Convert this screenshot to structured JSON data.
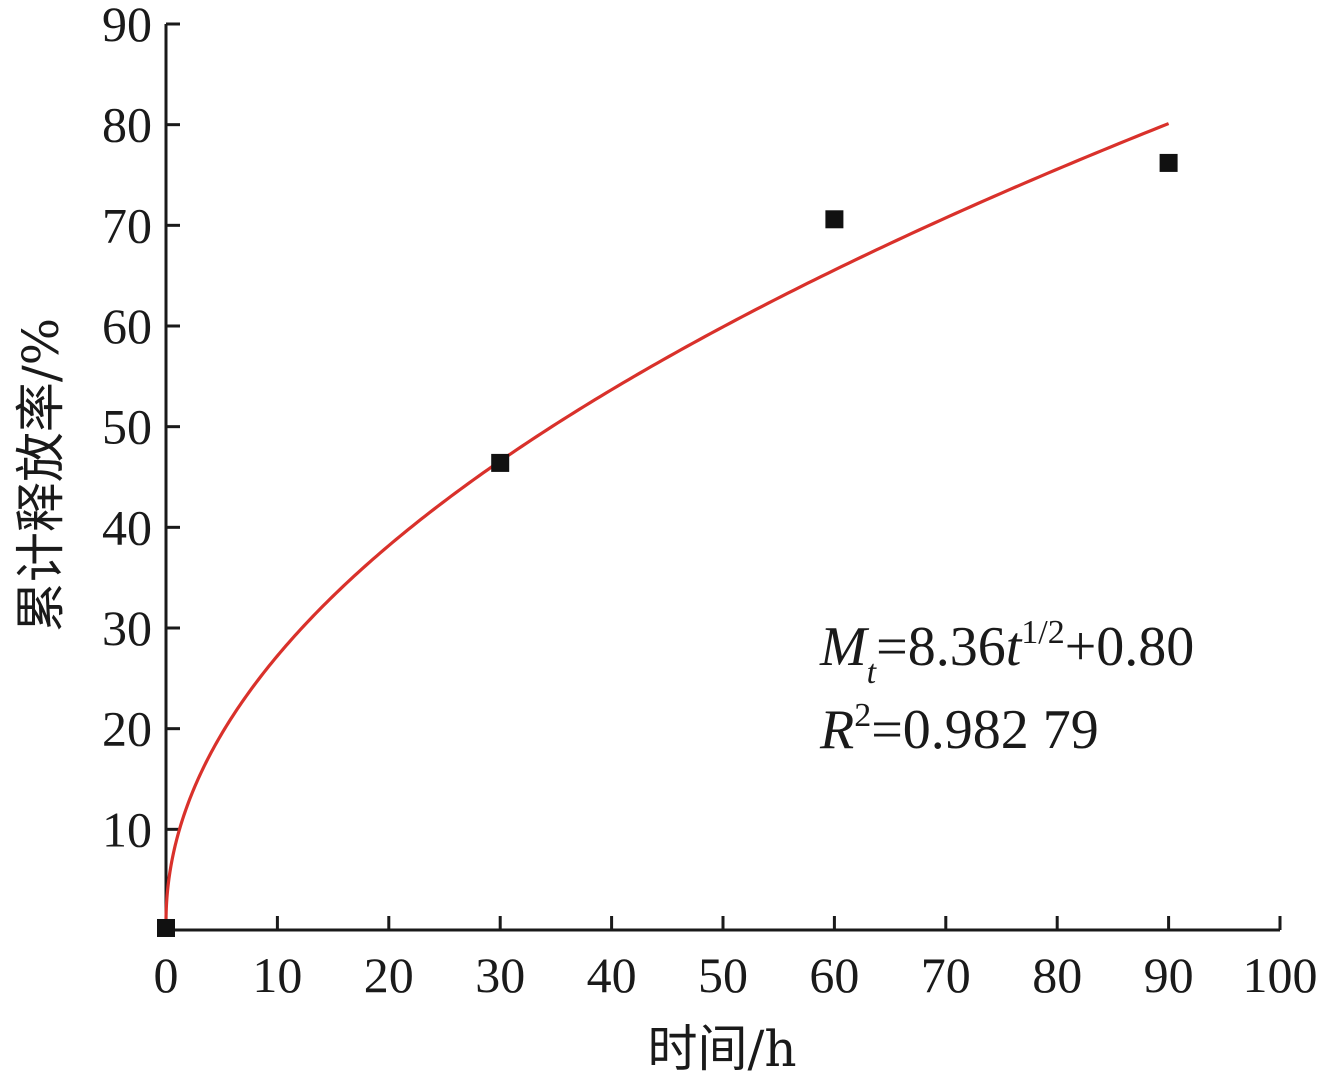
{
  "chart_data": {
    "type": "scatter",
    "xlabel": "时间/h",
    "ylabel": "累计释放率/%",
    "xlim": [
      0,
      100
    ],
    "ylim": [
      0,
      90
    ],
    "x_ticks": [
      "0",
      "10",
      "20",
      "30",
      "40",
      "50",
      "60",
      "70",
      "80",
      "90",
      "100"
    ],
    "y_ticks": [
      "10",
      "20",
      "30",
      "40",
      "50",
      "60",
      "70",
      "80",
      "90"
    ],
    "grid": false,
    "series": [
      {
        "kind": "points",
        "marker": "square",
        "color": "#111111",
        "x": [
          0,
          30,
          60,
          90
        ],
        "y": [
          0.2,
          46.4,
          70.6,
          76.2
        ]
      },
      {
        "kind": "fit-line",
        "color": "#d9312b",
        "model": "sqrt",
        "slope": 8.36,
        "intercept": 0.8,
        "x_range": [
          0,
          90
        ]
      }
    ],
    "annotations": {
      "equation": {
        "var": "M",
        "sub": "t",
        "eq": "=8.36",
        "t": "t",
        "exp": "1/2",
        "rest": "+0.80"
      },
      "r2": {
        "var": "R",
        "exp": "2",
        "rest": "=0.982 79"
      }
    }
  }
}
